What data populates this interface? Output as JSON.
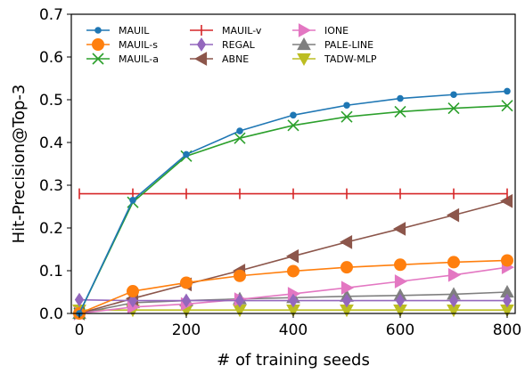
{
  "chart_data": {
    "type": "line",
    "xlabel": "# of training seeds",
    "ylabel": "Hit-Precision@Top-3",
    "xlim": [
      -15,
      815
    ],
    "ylim": [
      0,
      0.7
    ],
    "x_ticks": [
      0,
      200,
      400,
      600,
      800
    ],
    "x_tick_labels": [
      "0",
      "200",
      "400",
      "600",
      "800"
    ],
    "y_ticks": [
      0.0,
      0.1,
      0.2,
      0.3,
      0.4,
      0.5,
      0.6,
      0.7
    ],
    "y_tick_labels": [
      "0.0",
      "0.1",
      "0.2",
      "0.3",
      "0.4",
      "0.5",
      "0.6",
      "0.7"
    ],
    "grid": false,
    "legend_placement": "top-left",
    "x": [
      0,
      100,
      200,
      300,
      400,
      500,
      600,
      700,
      800
    ],
    "series": [
      {
        "name": "MAUIL",
        "color": "#1f77b4",
        "marker": "circle",
        "values": [
          0.0,
          0.265,
          0.372,
          0.427,
          0.464,
          0.487,
          0.503,
          0.512,
          0.52
        ]
      },
      {
        "name": "MAUIL-s",
        "color": "#ff7f0e",
        "marker": "circle-large",
        "values": [
          0.0,
          0.052,
          0.072,
          0.088,
          0.099,
          0.108,
          0.114,
          0.12,
          0.124
        ]
      },
      {
        "name": "MAUIL-a",
        "color": "#2ca02c",
        "marker": "x",
        "values": [
          0.0,
          0.26,
          0.368,
          0.41,
          0.44,
          0.46,
          0.472,
          0.48,
          0.486
        ]
      },
      {
        "name": "MAUIL-v",
        "color": "#d62728",
        "marker": "vline",
        "values": [
          0.28,
          0.28,
          0.28,
          0.28,
          0.28,
          0.28,
          0.28,
          0.28,
          0.28
        ]
      },
      {
        "name": "REGAL",
        "color": "#9467bd",
        "marker": "diamond",
        "values": [
          0.032,
          0.03,
          0.03,
          0.03,
          0.03,
          0.03,
          0.03,
          0.03,
          0.03
        ]
      },
      {
        "name": "ABNE",
        "color": "#8c564b",
        "marker": "triangle-left",
        "values": [
          0.0,
          0.035,
          0.068,
          0.1,
          0.134,
          0.167,
          0.198,
          0.23,
          0.263
        ]
      },
      {
        "name": "IONE",
        "color": "#e377c2",
        "marker": "triangle-right",
        "values": [
          0.0,
          0.015,
          0.022,
          0.033,
          0.046,
          0.06,
          0.075,
          0.09,
          0.108
        ]
      },
      {
        "name": "PALE-LINE",
        "color": "#7f7f7f",
        "marker": "triangle-up",
        "values": [
          0.0,
          0.025,
          0.03,
          0.034,
          0.037,
          0.04,
          0.042,
          0.045,
          0.05
        ]
      },
      {
        "name": "TADW-MLP",
        "color": "#bcbd22",
        "marker": "triangle-down",
        "values": [
          0.008,
          0.008,
          0.008,
          0.008,
          0.008,
          0.008,
          0.008,
          0.008,
          0.008
        ]
      }
    ]
  }
}
